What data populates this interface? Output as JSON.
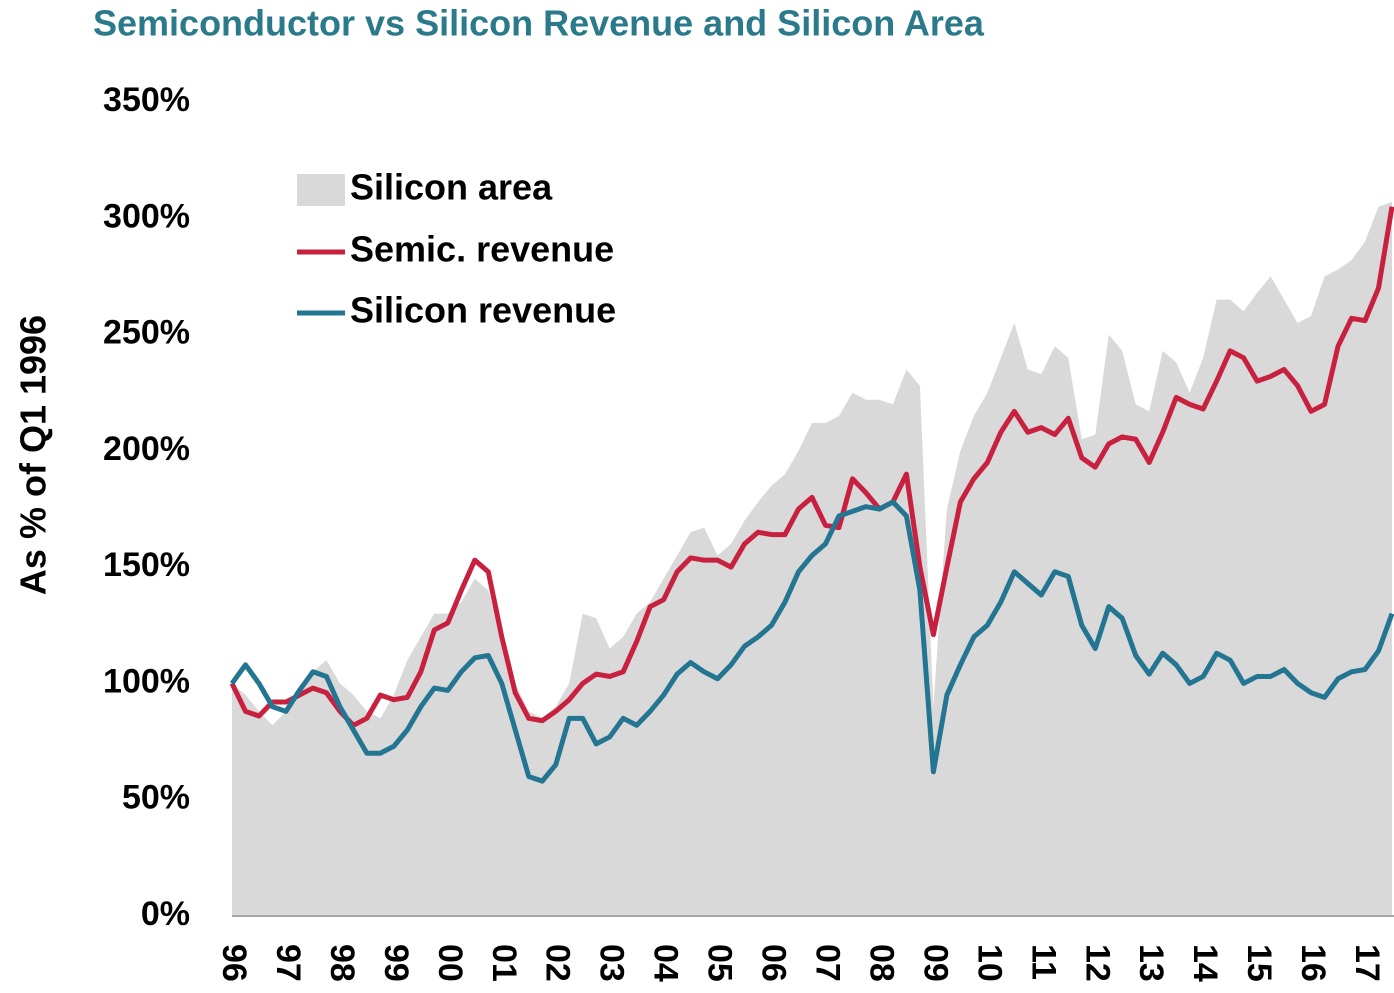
{
  "chart_data": {
    "type": "line",
    "title": "Semiconductor vs Silicon Revenue and Silicon Area",
    "y_label": "As % of Q1 1996",
    "categories": [
      "96",
      null,
      null,
      null,
      "97",
      null,
      null,
      null,
      "98",
      null,
      null,
      null,
      "99",
      null,
      null,
      null,
      "00",
      null,
      null,
      null,
      "01",
      null,
      null,
      null,
      "02",
      null,
      null,
      null,
      "03",
      null,
      null,
      null,
      "04",
      null,
      null,
      null,
      "05",
      null,
      null,
      null,
      "06",
      null,
      null,
      null,
      "07",
      null,
      null,
      null,
      "08",
      null,
      null,
      null,
      "09",
      null,
      null,
      null,
      "10",
      null,
      null,
      null,
      "11",
      null,
      null,
      null,
      "12",
      null,
      null,
      null,
      "13",
      null,
      null,
      null,
      "14",
      null,
      null,
      null,
      "15",
      null,
      null,
      null,
      "16",
      null,
      null,
      null,
      "17",
      null,
      null
    ],
    "series": [
      {
        "name": "Silicon area",
        "type": "area",
        "color": "#d9d9d9",
        "values": [
          100,
          95,
          88,
          82,
          88,
          95,
          105,
          110,
          100,
          95,
          88,
          85,
          95,
          110,
          120,
          130,
          130,
          135,
          145,
          140,
          120,
          100,
          88,
          85,
          90,
          100,
          130,
          128,
          115,
          120,
          130,
          135,
          145,
          155,
          165,
          167,
          155,
          160,
          170,
          178,
          185,
          190,
          200,
          212,
          212,
          215,
          225,
          222,
          222,
          220,
          235,
          228,
          90,
          175,
          200,
          215,
          225,
          240,
          255,
          235,
          233,
          245,
          240,
          205,
          207,
          250,
          243,
          220,
          217,
          243,
          238,
          225,
          240,
          265,
          265,
          260,
          268,
          275,
          265,
          255,
          258,
          275,
          278,
          282,
          290,
          305,
          307
        ]
      },
      {
        "name": "Semic. revenue",
        "type": "line",
        "color": "#c8213f",
        "values": [
          100,
          88,
          86,
          92,
          92,
          95,
          98,
          96,
          88,
          82,
          85,
          95,
          93,
          94,
          105,
          123,
          126,
          140,
          153,
          148,
          120,
          96,
          85,
          84,
          88,
          93,
          100,
          104,
          103,
          105,
          118,
          133,
          136,
          148,
          154,
          153,
          153,
          150,
          160,
          165,
          164,
          164,
          175,
          180,
          168,
          167,
          188,
          182,
          175,
          178,
          190,
          150,
          121,
          150,
          178,
          188,
          195,
          208,
          217,
          208,
          210,
          207,
          214,
          197,
          193,
          203,
          206,
          205,
          195,
          208,
          223,
          220,
          218,
          230,
          243,
          240,
          230,
          232,
          235,
          228,
          217,
          220,
          245,
          257,
          256,
          270,
          305
        ]
      },
      {
        "name": "Silicon revenue",
        "type": "line",
        "color": "#247592",
        "values": [
          100,
          108,
          100,
          90,
          88,
          97,
          105,
          103,
          90,
          80,
          70,
          70,
          73,
          80,
          90,
          98,
          97,
          105,
          111,
          112,
          100,
          80,
          60,
          58,
          65,
          85,
          85,
          74,
          77,
          85,
          82,
          88,
          95,
          104,
          109,
          105,
          102,
          108,
          116,
          120,
          125,
          135,
          148,
          155,
          160,
          172,
          174,
          176,
          175,
          178,
          172,
          140,
          62,
          95,
          108,
          120,
          125,
          135,
          148,
          143,
          138,
          148,
          146,
          125,
          115,
          133,
          128,
          112,
          104,
          113,
          108,
          100,
          103,
          113,
          110,
          100,
          103,
          103,
          106,
          100,
          96,
          94,
          102,
          105,
          106,
          114,
          130
        ]
      }
    ],
    "ylim": [
      0,
      350
    ],
    "yticks": [
      {
        "value": 0,
        "label": "0%"
      },
      {
        "value": 50,
        "label": "50%"
      },
      {
        "value": 100,
        "label": "100%"
      },
      {
        "value": 150,
        "label": "150%"
      },
      {
        "value": 200,
        "label": "200%"
      },
      {
        "value": 250,
        "label": "250%"
      },
      {
        "value": 300,
        "label": "300%"
      },
      {
        "value": 350,
        "label": "350%"
      }
    ]
  }
}
